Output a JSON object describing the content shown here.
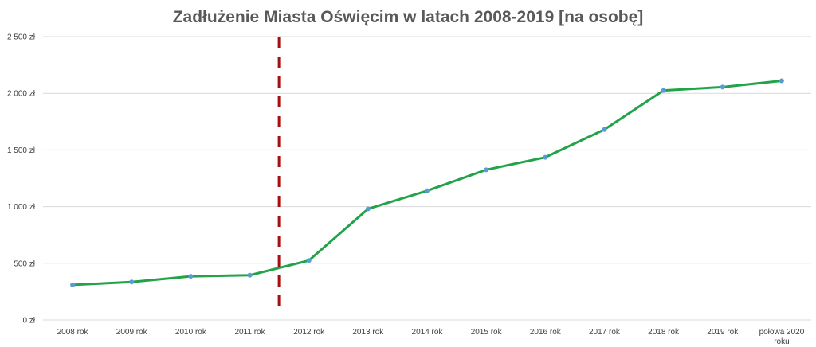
{
  "chart_data": {
    "type": "line",
    "title": "Zadłużenie Miasta Oświęcim w latach 2008-2019 [na osobę]",
    "xlabel": "",
    "ylabel": "",
    "categories": [
      "2008 rok",
      "2009 rok",
      "2010 rok",
      "2011 rok",
      "2012 rok",
      "2013 rok",
      "2014 rok",
      "2015 rok",
      "2016 rok",
      "2017 rok",
      "2018 rok",
      "2019 rok",
      "połowa 2020 roku"
    ],
    "series": [
      {
        "values": [
          310,
          335,
          385,
          395,
          525,
          980,
          1140,
          1325,
          1435,
          1680,
          2025,
          2055,
          2110
        ]
      }
    ],
    "ylim": [
      0,
      2500
    ],
    "yticks": [
      0,
      500,
      1000,
      1500,
      2000,
      2500
    ],
    "ytick_labels": [
      "0 zł",
      "500 zł",
      "1 000 zł",
      "1 500 zł",
      "2 000 zł",
      "2 500 zł"
    ],
    "grid": true,
    "legend": "none",
    "marker_line_between_categories": [
      "2011 rok",
      "2012 rok"
    ],
    "colors": {
      "line": "#22a34a",
      "marker": "#5b9bd5",
      "divider": "#a50f0f",
      "grid": "#d9d9d9"
    }
  }
}
